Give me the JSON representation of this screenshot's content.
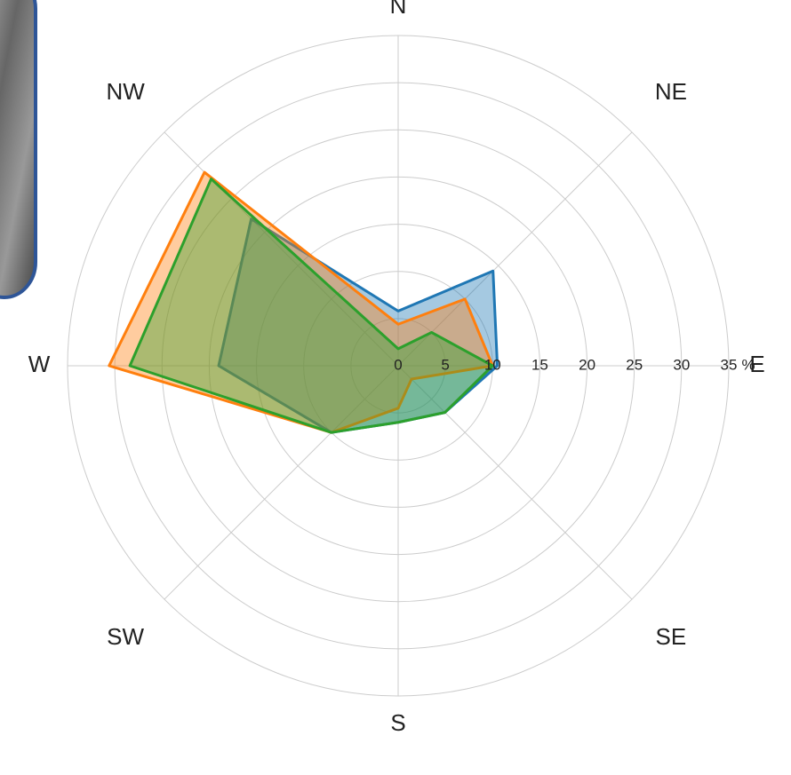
{
  "chart_data": {
    "type": "radar",
    "categories": [
      "N",
      "NE",
      "E",
      "SE",
      "S",
      "SW",
      "W",
      "NW"
    ],
    "series": [
      {
        "color": "#1f77b4",
        "values": [
          5.8,
          14.2,
          10.5,
          7,
          6,
          10,
          19,
          22
        ]
      },
      {
        "color": "#ff7f0e",
        "values": [
          4.4,
          10,
          10,
          2,
          4.5,
          10,
          30.6,
          29
        ]
      },
      {
        "color": "#2ca02c",
        "values": [
          1.8,
          5,
          10,
          7,
          6,
          10,
          28.4,
          28
        ]
      }
    ],
    "rlim": [
      0,
      35
    ],
    "rticks": [
      0,
      5,
      10,
      15,
      20,
      25,
      30,
      35
    ],
    "r_unit": "%",
    "grid": true
  }
}
